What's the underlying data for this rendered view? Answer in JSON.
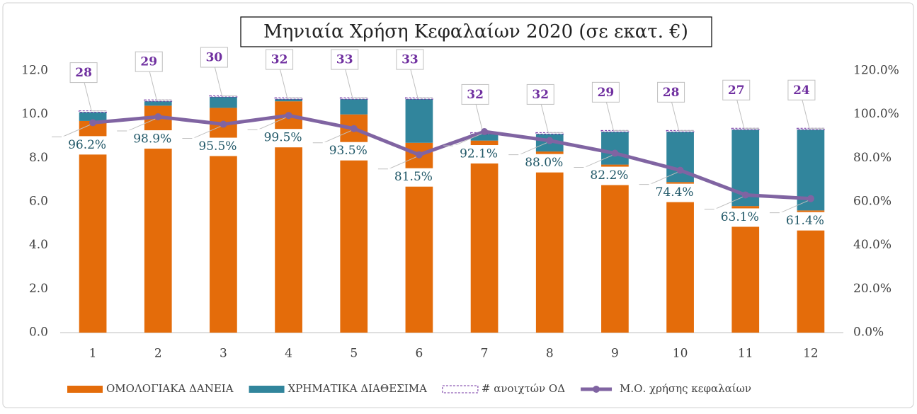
{
  "chart_data": {
    "type": "bar",
    "title": "Μηνιαία Χρήση Κεφαλαίων 2020 (σε εκατ. €)",
    "categories": [
      "1",
      "2",
      "3",
      "4",
      "5",
      "6",
      "7",
      "8",
      "9",
      "10",
      "11",
      "12"
    ],
    "ylim": [
      0,
      12
    ],
    "yticks": [
      {
        "value": 0,
        "label": "0.0"
      },
      {
        "value": 2,
        "label": "2.0"
      },
      {
        "value": 4,
        "label": "4.0"
      },
      {
        "value": 6,
        "label": "6.0"
      },
      {
        "value": 8,
        "label": "8.0"
      },
      {
        "value": 10,
        "label": "10.0"
      },
      {
        "value": 12,
        "label": "12.0"
      }
    ],
    "y2lim": [
      0,
      120
    ],
    "y2ticks": [
      {
        "value": 0,
        "label": "0.0%"
      },
      {
        "value": 20,
        "label": "20.0%"
      },
      {
        "value": 40,
        "label": "40.0%"
      },
      {
        "value": 60,
        "label": "60.0%"
      },
      {
        "value": 80,
        "label": "80.0%"
      },
      {
        "value": 100,
        "label": "100.0%"
      },
      {
        "value": 120,
        "label": "120.0%"
      }
    ],
    "stacked": true,
    "series": [
      {
        "name": "ΟΜΟΛΟΓΙΑΚΑ ΔΑΝΕΙΑ",
        "color": "#e46c0a",
        "values": [
          9.7,
          10.4,
          10.3,
          10.6,
          10.0,
          8.7,
          8.8,
          8.3,
          7.7,
          6.9,
          5.8,
          5.6
        ]
      },
      {
        "name": "ΧΡΗΜΑΤΙΚΑ ΔΙΑΘΕΣΙΜΑ",
        "color": "#31859c",
        "values": [
          0.4,
          0.2,
          0.5,
          0.1,
          0.7,
          2.0,
          0.3,
          0.8,
          1.5,
          2.3,
          3.5,
          3.7
        ]
      },
      {
        "name": "# ανοιχτών ΟΔ",
        "color": "#7030a0",
        "kind": "count",
        "values": [
          28,
          29,
          30,
          32,
          33,
          33,
          32,
          32,
          29,
          28,
          27,
          24
        ]
      },
      {
        "name": "Μ.Ο. χρήσης κεφαλαίων",
        "color": "#8064a2",
        "type": "line",
        "axis": "y2",
        "values": [
          96.2,
          98.9,
          95.5,
          99.5,
          93.5,
          81.5,
          92.1,
          88.0,
          82.2,
          74.4,
          63.1,
          61.4
        ],
        "value_labels": [
          "96.2%",
          "98.9%",
          "95.5%",
          "99.5%",
          "93.5%",
          "81.5%",
          "92.1%",
          "88.0%",
          "82.2%",
          "74.4%",
          "63.1%",
          "61.4%"
        ]
      }
    ]
  }
}
